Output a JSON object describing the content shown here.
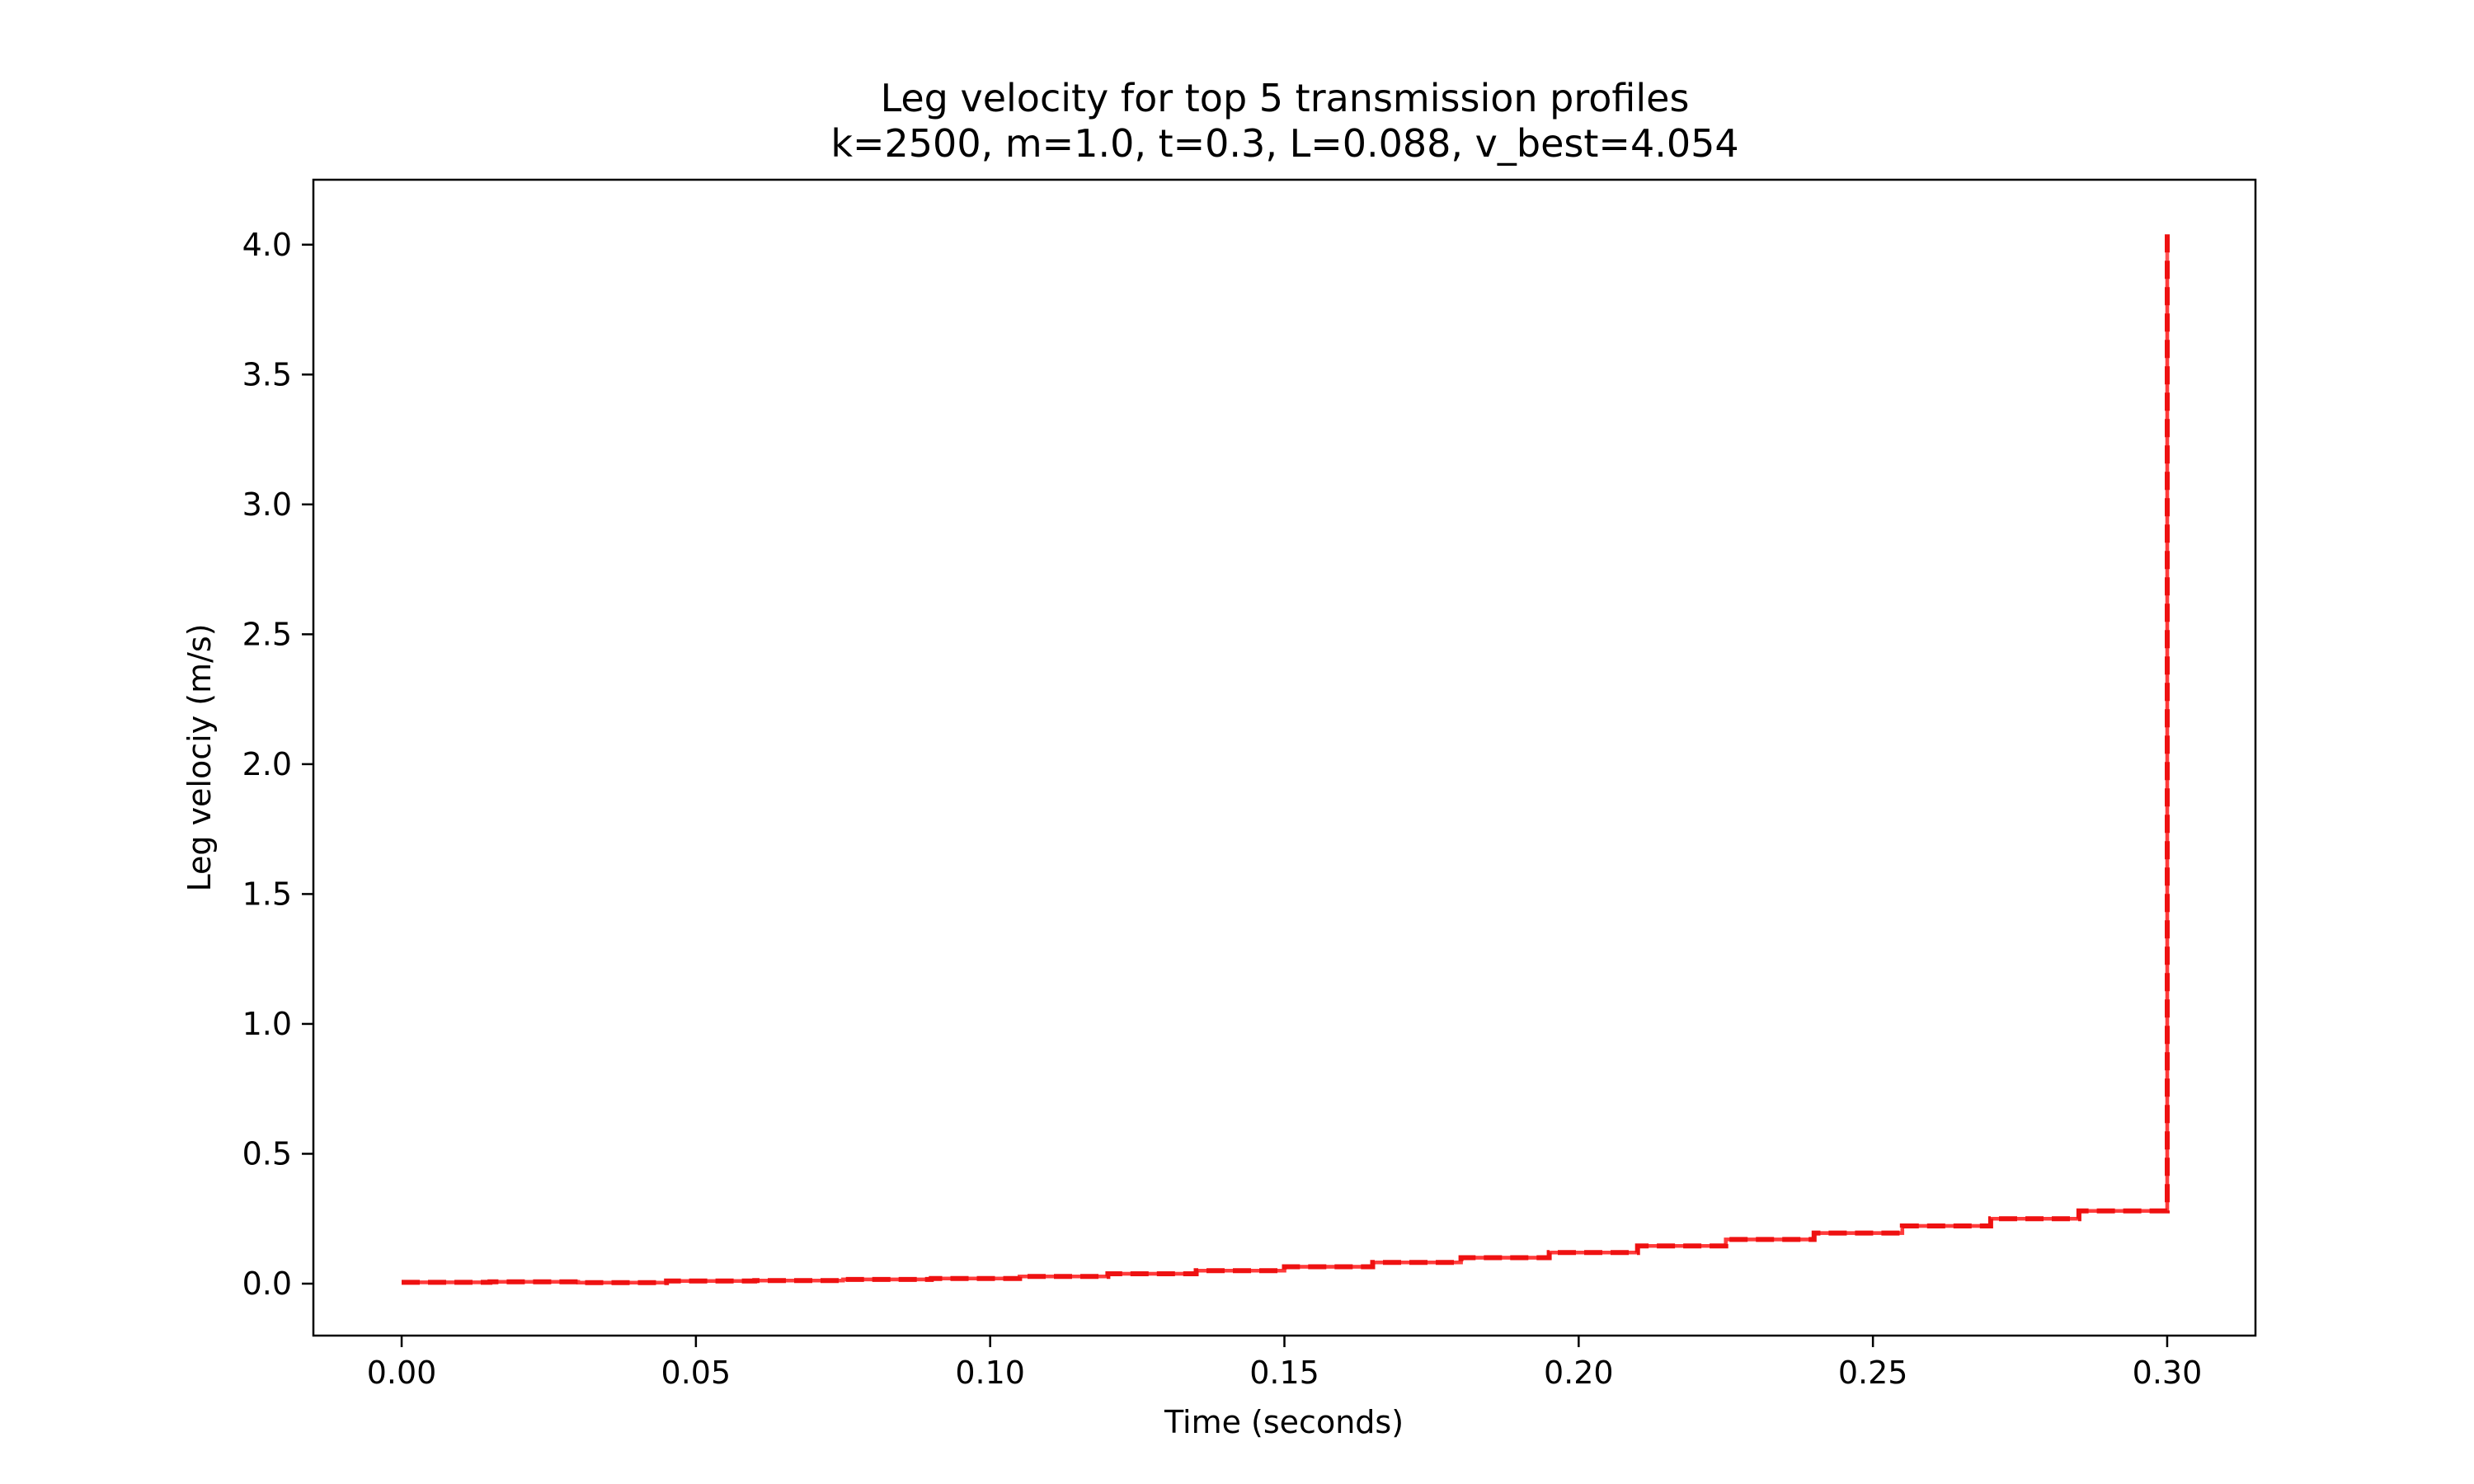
{
  "chart_data": {
    "type": "line",
    "title": "Leg velocity for top 5 transmission profiles",
    "subtitle": "k=2500, m=1.0, t=0.3, L=0.088, v_best=4.054",
    "xlabel": "Time (seconds)",
    "ylabel": "Leg velociy (m/s)",
    "xlim": [
      -0.015,
      0.315
    ],
    "ylim": [
      -0.2,
      4.25
    ],
    "xticks": [
      0.0,
      0.05,
      0.1,
      0.15,
      0.2,
      0.25,
      0.3
    ],
    "xtick_labels": [
      "0.00",
      "0.05",
      "0.10",
      "0.15",
      "0.20",
      "0.25",
      "0.30"
    ],
    "yticks": [
      0.0,
      0.5,
      1.0,
      1.5,
      2.0,
      2.5,
      3.0,
      3.5,
      4.0
    ],
    "ytick_labels": [
      "0.0",
      "0.5",
      "1.0",
      "1.5",
      "2.0",
      "2.5",
      "3.0",
      "3.5",
      "4.0"
    ],
    "grid": false,
    "step_edges": [
      0.0,
      0.015,
      0.03,
      0.045,
      0.06,
      0.075,
      0.09,
      0.105,
      0.12,
      0.135,
      0.15,
      0.165,
      0.18,
      0.195,
      0.21,
      0.225,
      0.24,
      0.255,
      0.27,
      0.285,
      0.3
    ],
    "series": [
      {
        "values": [
          0.005,
          0.007,
          0.004,
          0.01,
          0.012,
          0.016,
          0.02,
          0.028,
          0.038,
          0.05,
          0.065,
          0.082,
          0.1,
          0.12,
          0.145,
          0.17,
          0.195,
          0.222,
          0.25,
          0.28,
          4.054
        ],
        "color": "#ee1111",
        "dashed": true,
        "opacity": 1.0
      },
      {
        "values": [
          0.005,
          0.007,
          0.004,
          0.01,
          0.012,
          0.016,
          0.02,
          0.028,
          0.038,
          0.05,
          0.065,
          0.082,
          0.1,
          0.12,
          0.145,
          0.17,
          0.195,
          0.222,
          0.25,
          0.28,
          4.01
        ],
        "color": "#ff0000",
        "dashed": false,
        "opacity": 0.3
      },
      {
        "values": [
          0.005,
          0.007,
          0.004,
          0.01,
          0.012,
          0.016,
          0.02,
          0.028,
          0.038,
          0.05,
          0.065,
          0.082,
          0.1,
          0.12,
          0.145,
          0.17,
          0.195,
          0.222,
          0.25,
          0.28,
          3.98
        ],
        "color": "#ff0000",
        "dashed": false,
        "opacity": 0.3
      },
      {
        "values": [
          0.005,
          0.007,
          0.004,
          0.01,
          0.012,
          0.016,
          0.02,
          0.028,
          0.038,
          0.05,
          0.065,
          0.082,
          0.1,
          0.12,
          0.145,
          0.17,
          0.195,
          0.222,
          0.25,
          0.28,
          3.97
        ],
        "color": "#ff0000",
        "dashed": false,
        "opacity": 0.3
      },
      {
        "values": [
          0.005,
          0.007,
          0.004,
          0.01,
          0.012,
          0.016,
          0.02,
          0.028,
          0.038,
          0.05,
          0.065,
          0.082,
          0.1,
          0.12,
          0.145,
          0.17,
          0.195,
          0.222,
          0.25,
          0.28,
          3.93
        ],
        "color": "#ff0000",
        "dashed": false,
        "opacity": 0.3
      }
    ]
  }
}
